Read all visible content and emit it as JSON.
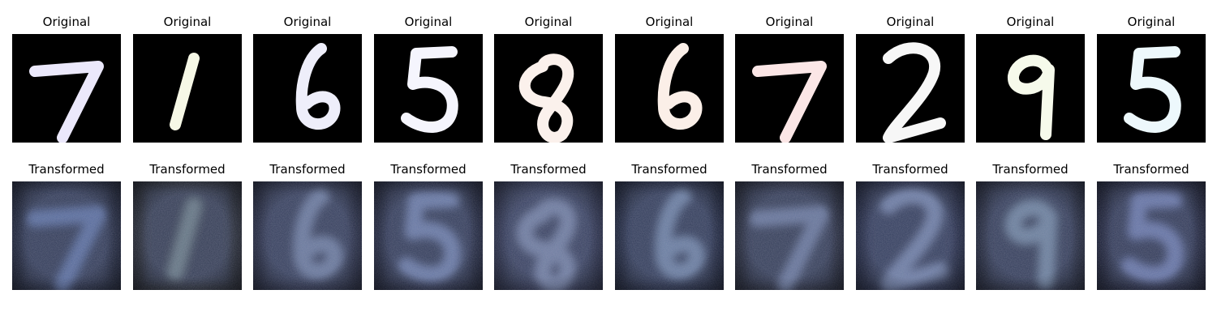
{
  "figure": {
    "original_row": {
      "label": "Original",
      "samples": [
        {
          "digit": "7",
          "stroke": "#ebe8fb"
        },
        {
          "digit": "1",
          "stroke": "#f6f8e6"
        },
        {
          "digit": "6",
          "stroke": "#eeeefa"
        },
        {
          "digit": "5",
          "stroke": "#f5f5fd"
        },
        {
          "digit": "8",
          "stroke": "#fbf1ec"
        },
        {
          "digit": "6",
          "stroke": "#fbefe8"
        },
        {
          "digit": "7",
          "stroke": "#fbe6e6"
        },
        {
          "digit": "2",
          "stroke": "#f7f7f7"
        },
        {
          "digit": "9",
          "stroke": "#f6faeb"
        },
        {
          "digit": "5",
          "stroke": "#edf8fc"
        }
      ]
    },
    "transformed_row": {
      "label": "Transformed",
      "samples": [
        {
          "digit": "7",
          "background": "#1f2740",
          "stroke": "#5d72a6"
        },
        {
          "digit": "1",
          "background": "#252a36",
          "stroke": "#6a7c8a"
        },
        {
          "digit": "6",
          "background": "#262d48",
          "stroke": "#6f7fa5"
        },
        {
          "digit": "5",
          "background": "#222944",
          "stroke": "#6d7eae"
        },
        {
          "digit": "8",
          "background": "#2c3352",
          "stroke": "#7483a8"
        },
        {
          "digit": "6",
          "background": "#1f2844",
          "stroke": "#7085ab"
        },
        {
          "digit": "7",
          "background": "#252b40",
          "stroke": "#6c7ba3"
        },
        {
          "digit": "2",
          "background": "#232b4a",
          "stroke": "#7284ad"
        },
        {
          "digit": "9",
          "background": "#252c44",
          "stroke": "#7187a6"
        },
        {
          "digit": "5",
          "background": "#1f2540",
          "stroke": "#6b7bb0"
        }
      ]
    }
  }
}
